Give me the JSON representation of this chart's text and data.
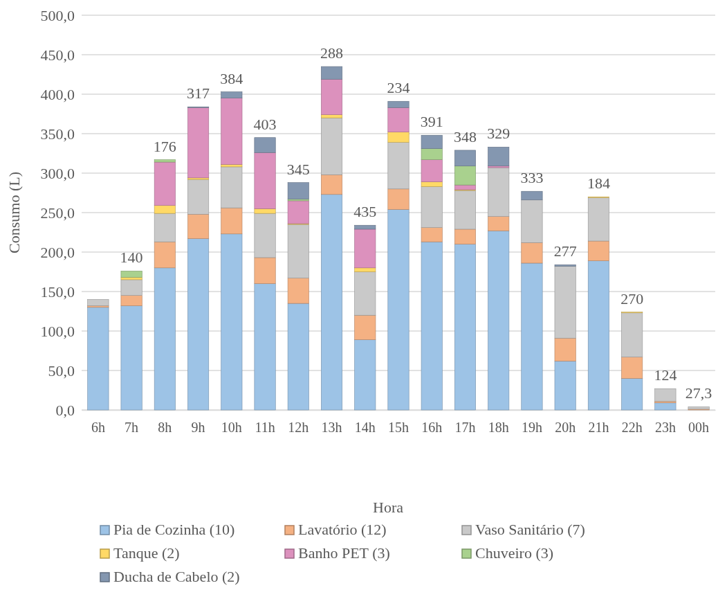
{
  "chart_data": {
    "type": "bar",
    "stacked": true,
    "xlabel": "Hora",
    "ylabel": "Consumo (L)",
    "categories": [
      "6h",
      "7h",
      "8h",
      "9h",
      "10h",
      "11h",
      "12h",
      "13h",
      "14h",
      "15h",
      "16h",
      "17h",
      "18h",
      "19h",
      "20h",
      "21h",
      "22h",
      "23h",
      "00h"
    ],
    "series": [
      {
        "name": "Pia de Cozinha (10)",
        "color": "#9dc3e6",
        "values": [
          130,
          132,
          180,
          217,
          223,
          160,
          135,
          273,
          89,
          254,
          213,
          210,
          227,
          186,
          62,
          189,
          40,
          9,
          0
        ]
      },
      {
        "name": "Lavatório (12)",
        "color": "#f4b183",
        "values": [
          2,
          13,
          33,
          31,
          33,
          33,
          32,
          25,
          31,
          26,
          18,
          19,
          18,
          26,
          29,
          25,
          27,
          2,
          1
        ]
      },
      {
        "name": "Vaso Sanitário (7)",
        "color": "#c9c9c9",
        "values": [
          8,
          20,
          36,
          44,
          52,
          56,
          68,
          72,
          55,
          59,
          52,
          49,
          62,
          54,
          91,
          55,
          56,
          16,
          3
        ]
      },
      {
        "name": "Tanque (2)",
        "color": "#ffd966",
        "values": [
          0,
          3,
          10,
          2,
          3,
          6,
          1,
          4,
          5,
          13,
          6,
          1,
          0,
          0,
          0,
          1,
          1,
          0,
          0
        ]
      },
      {
        "name": "Banho PET (3)",
        "color": "#dc91bd",
        "values": [
          0,
          0,
          55,
          89,
          84,
          71,
          29,
          45,
          49,
          31,
          28,
          6,
          2,
          0,
          0,
          0,
          0,
          0,
          0
        ]
      },
      {
        "name": "Chuveiro (3)",
        "color": "#a9d18e",
        "values": [
          0,
          8,
          3,
          0,
          0,
          0,
          2,
          0,
          0,
          0,
          14,
          24,
          0,
          0,
          0,
          0,
          0,
          0,
          0
        ]
      },
      {
        "name": "Ducha de Cabelo (2)",
        "color": "#8497b0",
        "values": [
          0,
          0,
          0,
          1,
          8,
          19,
          21,
          16,
          5,
          8,
          17,
          20,
          24,
          11,
          2,
          0,
          0,
          0,
          0
        ]
      }
    ],
    "ylim": [
      0,
      500
    ],
    "yticks": [
      {
        "value": 0,
        "label": "0,0"
      },
      {
        "value": 50,
        "label": "50,0"
      },
      {
        "value": 100,
        "label": "100,0"
      },
      {
        "value": 150,
        "label": "150,0"
      },
      {
        "value": 200,
        "label": "200,0"
      },
      {
        "value": 250,
        "label": "250,0"
      },
      {
        "value": 300,
        "label": "300,0"
      },
      {
        "value": 350,
        "label": "350,0"
      },
      {
        "value": 400,
        "label": "400,0"
      },
      {
        "value": 450,
        "label": "450,0"
      },
      {
        "value": 500,
        "label": "500,0"
      }
    ],
    "grid": "y",
    "legend": "bottom",
    "annotations": [
      "140",
      "176",
      "317",
      "384",
      "403",
      "345",
      "288",
      "435",
      "234",
      "391",
      "348",
      "329",
      "333",
      "277",
      "184",
      "270",
      "124",
      "27,3"
    ]
  }
}
